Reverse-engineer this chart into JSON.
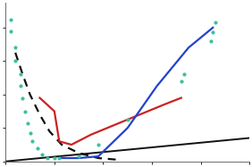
{
  "background_color": "#ffffff",
  "scatter_color": "#3dbfa0",
  "scatter_x": [
    0.02,
    0.02,
    0.04,
    0.04,
    0.06,
    0.06,
    0.07,
    0.08,
    0.09,
    0.1,
    0.11,
    0.13,
    0.15,
    0.17,
    0.2,
    0.22,
    0.3,
    0.38,
    0.5,
    0.72,
    0.73,
    0.84,
    0.85,
    0.86
  ],
  "scatter_y": [
    0.85,
    0.78,
    0.68,
    0.6,
    0.52,
    0.45,
    0.38,
    0.3,
    0.23,
    0.17,
    0.12,
    0.08,
    0.04,
    0.02,
    0.02,
    0.02,
    0.03,
    0.1,
    0.25,
    0.48,
    0.52,
    0.72,
    0.77,
    0.83
  ],
  "dashed_x": [
    0.04,
    0.07,
    0.1,
    0.14,
    0.18,
    0.23,
    0.3,
    0.38,
    0.46
  ],
  "dashed_y": [
    0.65,
    0.52,
    0.4,
    0.28,
    0.18,
    0.1,
    0.05,
    0.02,
    0.01
  ],
  "dashed_color": "#111111",
  "red_x": [
    0.14,
    0.2,
    0.22,
    0.27,
    0.35,
    0.45,
    0.55,
    0.65,
    0.72
  ],
  "red_y": [
    0.38,
    0.3,
    0.12,
    0.1,
    0.16,
    0.22,
    0.28,
    0.34,
    0.38
  ],
  "red_color": "#cc2222",
  "blue_x": [
    0.23,
    0.3,
    0.38,
    0.5,
    0.62,
    0.75,
    0.85
  ],
  "blue_y": [
    0.02,
    0.02,
    0.03,
    0.2,
    0.45,
    0.68,
    0.8
  ],
  "blue_color": "#2244cc",
  "black_x": [
    0.0,
    1.0
  ],
  "black_y": [
    0.0,
    0.14
  ],
  "black_color": "#111111",
  "xlim": [
    0.0,
    1.0
  ],
  "ylim": [
    0.0,
    0.95
  ]
}
